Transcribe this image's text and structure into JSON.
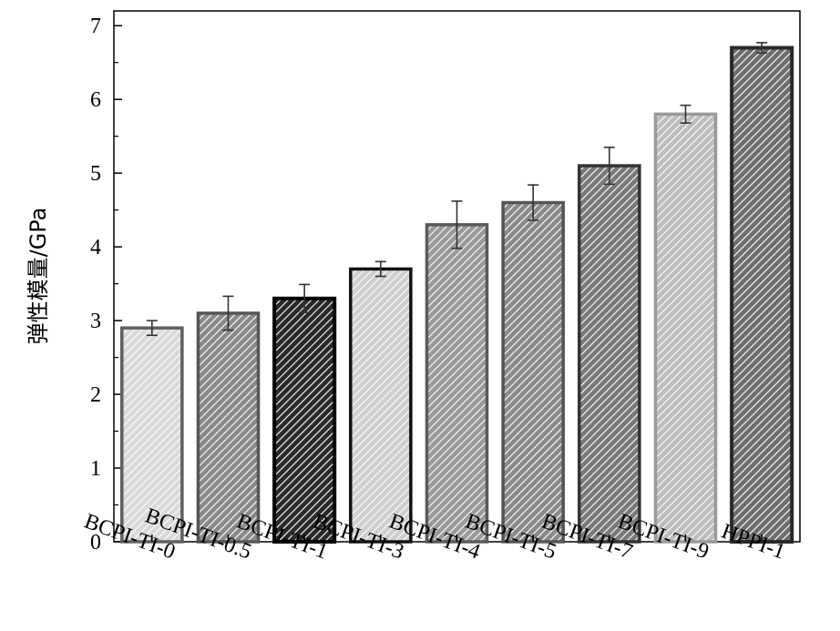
{
  "chart_data": {
    "type": "bar",
    "categories": [
      "BCPI-TI-0",
      "BCPI-TI-0.5",
      "BCPI-TI-1",
      "BCPI-TI-3",
      "BCPI-TI-4",
      "BCPI-TI-5",
      "BCPI-TI-7",
      "BCPI-TI-9",
      "HPPI-1"
    ],
    "values": [
      2.9,
      3.1,
      3.3,
      3.7,
      4.3,
      4.6,
      5.1,
      5.8,
      6.7
    ],
    "errors": [
      0.1,
      0.23,
      0.19,
      0.1,
      0.32,
      0.24,
      0.25,
      0.12,
      0.07
    ],
    "ylabel": "弹性模量/GPa",
    "xlabel": "",
    "ylim": [
      0,
      7.2
    ],
    "yticks": [
      0,
      1,
      2,
      3,
      4,
      5,
      6,
      7
    ],
    "grid": false,
    "legend": "none",
    "bar_fill_colors": [
      "#d9d9d9",
      "#8a8a8a",
      "#2a2a2a",
      "#cfcfcf",
      "#9a9a9a",
      "#8a8a8a",
      "#7a7a7a",
      "#bdbdbd",
      "#6e6e6e"
    ],
    "bar_edge_colors": [
      "#606060",
      "#555555",
      "#000000",
      "#111111",
      "#5a5a5a",
      "#555555",
      "#333333",
      "#9a9a9a",
      "#2a2a2a"
    ]
  }
}
